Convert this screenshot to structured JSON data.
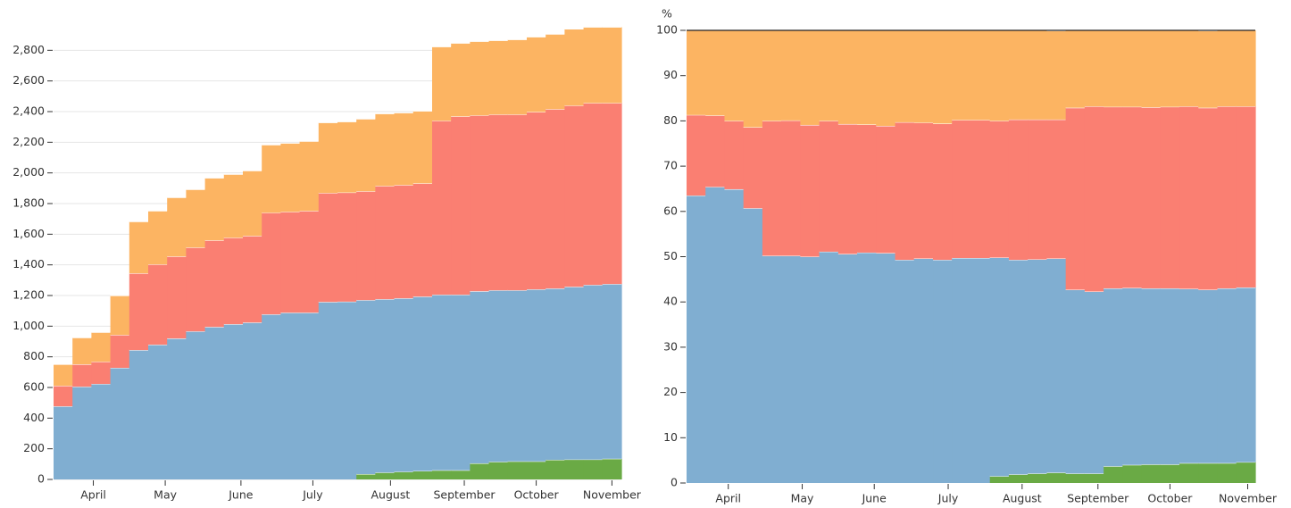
{
  "chart_data": [
    {
      "type": "area",
      "stacked": true,
      "step": true,
      "grid": true,
      "xlim": [
        0,
        30
      ],
      "xticks": [
        {
          "value": 2.1,
          "label": "April"
        },
        {
          "value": 5.9,
          "label": "May"
        },
        {
          "value": 9.9,
          "label": "June"
        },
        {
          "value": 13.7,
          "label": "July"
        },
        {
          "value": 17.8,
          "label": "August"
        },
        {
          "value": 21.7,
          "label": "September"
        },
        {
          "value": 25.5,
          "label": "October"
        },
        {
          "value": 29.5,
          "label": "November"
        }
      ],
      "ylim": [
        0,
        3000
      ],
      "yticks": [
        0,
        200,
        400,
        600,
        800,
        {
          "value": 1000,
          "label": "1,000"
        },
        {
          "value": 1200,
          "label": "1,200"
        },
        {
          "value": 1400,
          "label": "1,400"
        },
        {
          "value": 1600,
          "label": "1,600"
        },
        {
          "value": 1800,
          "label": "1,800"
        },
        {
          "value": 2000,
          "label": "2,000"
        },
        {
          "value": 2200,
          "label": "2,200"
        },
        {
          "value": 2400,
          "label": "2,400"
        },
        {
          "value": 2600,
          "label": "2,600"
        },
        {
          "value": 2800,
          "label": "2,800"
        }
      ],
      "series": [
        {
          "color": "#6aaa45",
          "values": [
            null,
            null,
            null,
            null,
            null,
            null,
            null,
            null,
            null,
            null,
            null,
            null,
            null,
            null,
            null,
            null,
            35,
            45,
            50,
            55,
            60,
            60,
            105,
            115,
            118,
            118,
            128,
            130,
            130,
            135
          ]
        },
        {
          "color": "#80aed1",
          "values": [
            477,
            605,
            623,
            728,
            844,
            879,
            920,
            966,
            995,
            1013,
            1024,
            1077,
            1088,
            1088,
            1158,
            1160,
            1135,
            1131,
            1132,
            1138,
            1145,
            1145,
            1123,
            1119,
            1116,
            1122,
            1118,
            1127,
            1139,
            1140
          ]
        },
        {
          "color": "#fa7f72",
          "values": [
            134,
            146,
            145,
            215,
            501,
            524,
            535,
            547,
            565,
            564,
            565,
            663,
            658,
            664,
            711,
            712,
            710,
            739,
            739,
            739,
            1135,
            1164,
            1147,
            1147,
            1147,
            1158,
            1170,
            1182,
            1187,
            1181
          ]
        },
        {
          "color": "#fcb462",
          "values": [
            140,
            174,
            192,
            256,
            337,
            349,
            384,
            379,
            407,
            414,
            425,
            443,
            448,
            454,
            459,
            462,
            472,
            471,
            471,
            472,
            483,
            477,
            483,
            483,
            489,
            489,
            489,
            500,
            495,
            495
          ]
        }
      ]
    },
    {
      "type": "area",
      "stacked": true,
      "step": true,
      "grid": false,
      "y_label": "%",
      "xlim": [
        0,
        30
      ],
      "xticks": [
        {
          "value": 2.2,
          "label": "April"
        },
        {
          "value": 6.1,
          "label": "May"
        },
        {
          "value": 9.9,
          "label": "June"
        },
        {
          "value": 13.8,
          "label": "July"
        },
        {
          "value": 17.7,
          "label": "August"
        },
        {
          "value": 21.7,
          "label": "September"
        },
        {
          "value": 25.5,
          "label": "October"
        },
        {
          "value": 29.6,
          "label": "November"
        }
      ],
      "ylim": [
        0,
        100
      ],
      "yticks": [
        0,
        10,
        20,
        30,
        40,
        50,
        60,
        70,
        80,
        90,
        100
      ],
      "series": [
        {
          "color": "#6aaa45",
          "values": [
            null,
            null,
            null,
            null,
            null,
            null,
            null,
            null,
            null,
            null,
            null,
            null,
            null,
            null,
            null,
            null,
            1.5,
            1.9,
            2.1,
            2.3,
            2.1,
            2.1,
            3.7,
            4.0,
            4.1,
            4.1,
            4.4,
            4.4,
            4.4,
            4.6
          ]
        },
        {
          "color": "#80aed1",
          "values": [
            63.5,
            65.4,
            64.9,
            60.7,
            50.2,
            50.2,
            50.0,
            51.1,
            50.6,
            50.9,
            50.8,
            49.3,
            49.6,
            49.3,
            49.7,
            49.7,
            48.3,
            47.4,
            47.3,
            47.3,
            40.6,
            40.2,
            39.3,
            39.1,
            38.9,
            38.9,
            38.5,
            38.3,
            38.6,
            38.6
          ]
        },
        {
          "color": "#fa7f72",
          "values": [
            17.8,
            15.8,
            15.1,
            17.9,
            29.8,
            29.9,
            29.1,
            28.9,
            28.7,
            28.3,
            28.1,
            30.4,
            30.0,
            30.1,
            30.5,
            30.5,
            30.2,
            31.0,
            30.9,
            30.7,
            40.2,
            40.9,
            40.1,
            40.0,
            40.0,
            40.1,
            40.3,
            40.2,
            40.2,
            40.0
          ]
        },
        {
          "color": "#fcb462",
          "values": [
            18.7,
            18.8,
            20.0,
            21.4,
            20.0,
            19.9,
            20.9,
            20.0,
            20.7,
            20.8,
            21.1,
            20.3,
            20.4,
            20.6,
            19.8,
            19.8,
            20.1,
            19.7,
            19.7,
            19.6,
            17.1,
            16.8,
            16.9,
            16.9,
            17.0,
            16.9,
            16.8,
            17.0,
            16.8,
            16.8
          ]
        }
      ]
    }
  ]
}
